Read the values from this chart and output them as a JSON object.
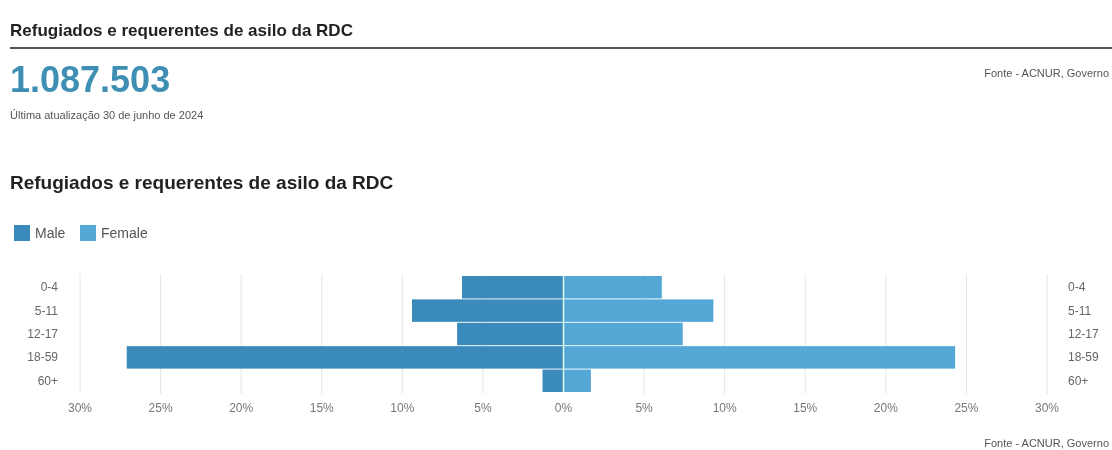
{
  "chart_data": {
    "type": "bar",
    "orientation": "horizontal",
    "stacked": true,
    "title": "Refugiados e requerentes de asilo da RDC",
    "annotations": [
      "Refugiados e requerentes de asilo da RDC",
      "1.087.503",
      "Última atualização 30 de junho de 2024",
      "Fonte - ACNUR, Governo",
      "Fonte - ACNUR, Governo"
    ],
    "categories": [
      "0-4",
      "5-11",
      "12-17",
      "18-59",
      "60+"
    ],
    "series": [
      {
        "name": "Male",
        "color": "#3a8bbb",
        "values": [
          -6.3,
          -9.4,
          -6.6,
          -27.1,
          -1.3
        ]
      },
      {
        "name": "Female",
        "color": "#55a7d6",
        "values": [
          6.1,
          9.3,
          7.4,
          24.3,
          1.7
        ]
      }
    ],
    "xlim": [
      -30,
      30
    ],
    "xticks": [
      {
        "value": -30,
        "label": "30%"
      },
      {
        "value": -25,
        "label": "25%"
      },
      {
        "value": -20,
        "label": "20%"
      },
      {
        "value": -15,
        "label": "15%"
      },
      {
        "value": -10,
        "label": "10%"
      },
      {
        "value": -5,
        "label": "5%"
      },
      {
        "value": 0,
        "label": "0%"
      },
      {
        "value": 5,
        "label": "5%"
      },
      {
        "value": 10,
        "label": "10%"
      },
      {
        "value": 15,
        "label": "15%"
      },
      {
        "value": 20,
        "label": "20%"
      },
      {
        "value": 25,
        "label": "25%"
      },
      {
        "value": 30,
        "label": "30%"
      }
    ],
    "grid": "x",
    "legend": "top left"
  }
}
